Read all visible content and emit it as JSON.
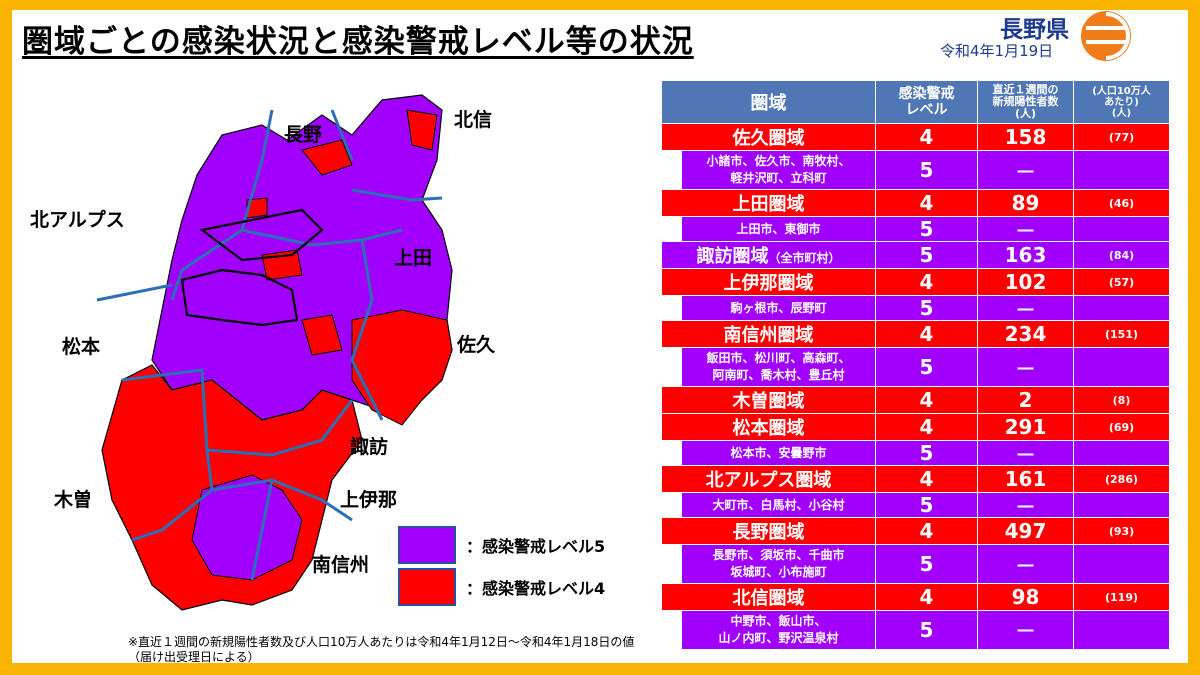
{
  "title": "圏域ごとの感染状況と感染警戒レベル等の状況",
  "org": "長野県",
  "date": "令和4年1月19日",
  "colors": {
    "level5": "#a100ff",
    "level4": "#ff0000",
    "header": "#4f76b5",
    "frame": "#f8b400"
  },
  "map": {
    "labels": {
      "nagano": "長野",
      "hokushin": "北信",
      "kita_alps": "北アルプス",
      "ueda": "上田",
      "matsumoto": "松本",
      "saku": "佐久",
      "suwa": "諏訪",
      "kiso": "木曽",
      "kamiina": "上伊那",
      "minamishinshu": "南信州"
    },
    "legend": {
      "level5": "：感染警戒レベル5",
      "level4": "：感染警戒レベル4"
    }
  },
  "table": {
    "headers": {
      "area": "圏域",
      "level": "感染警戒\nレベル",
      "count": "直近１週間の\n新規陽性者数\n(人)",
      "per": "(人口10万人\nあたり)\n(人)"
    },
    "rows": [
      {
        "name": "佐久圏域",
        "level": "4",
        "count": "158",
        "per": "(77)",
        "sub": "小諸市、佐久市、南牧村、\n軽井沢町、立科町",
        "sub_level": "5",
        "sub_dash": "―"
      },
      {
        "name": "上田圏域",
        "level": "4",
        "count": "89",
        "per": "(46)",
        "sub": "上田市、東御市",
        "sub_level": "5",
        "sub_dash": "―"
      },
      {
        "name": "諏訪圏域",
        "name_note": "（全市町村）",
        "level": "5",
        "count": "163",
        "per": "(84)",
        "purple": true
      },
      {
        "name": "上伊那圏域",
        "level": "4",
        "count": "102",
        "per": "(57)",
        "sub": "駒ヶ根市、辰野町",
        "sub_level": "5",
        "sub_dash": "―"
      },
      {
        "name": "南信州圏域",
        "level": "4",
        "count": "234",
        "per": "(151)",
        "sub": "飯田市、松川町、高森町、\n阿南町、喬木村、豊丘村",
        "sub_level": "5",
        "sub_dash": "―"
      },
      {
        "name": "木曽圏域",
        "level": "4",
        "count": "2",
        "per": "(8)"
      },
      {
        "name": "松本圏域",
        "level": "4",
        "count": "291",
        "per": "(69)",
        "sub": "松本市、安曇野市",
        "sub_level": "5",
        "sub_dash": "―"
      },
      {
        "name": "北アルプス圏域",
        "level": "4",
        "count": "161",
        "per": "(286)",
        "sub": "大町市、白馬村、小谷村",
        "sub_level": "5",
        "sub_dash": "―"
      },
      {
        "name": "長野圏域",
        "level": "4",
        "count": "497",
        "per": "(93)",
        "sub": "長野市、須坂市、千曲市\n坂城町、小布施町",
        "sub_level": "5",
        "sub_dash": "―"
      },
      {
        "name": "北信圏域",
        "level": "4",
        "count": "98",
        "per": "(119)",
        "sub": "中野市、飯山市、\n山ノ内町、野沢温泉村",
        "sub_level": "5",
        "sub_dash": "―"
      }
    ]
  },
  "footnote": "※直近１週間の新規陽性者数及び人口10万人あたりは令和4年1月12日～令和4年1月18日の値\n（届け出受理日による）"
}
